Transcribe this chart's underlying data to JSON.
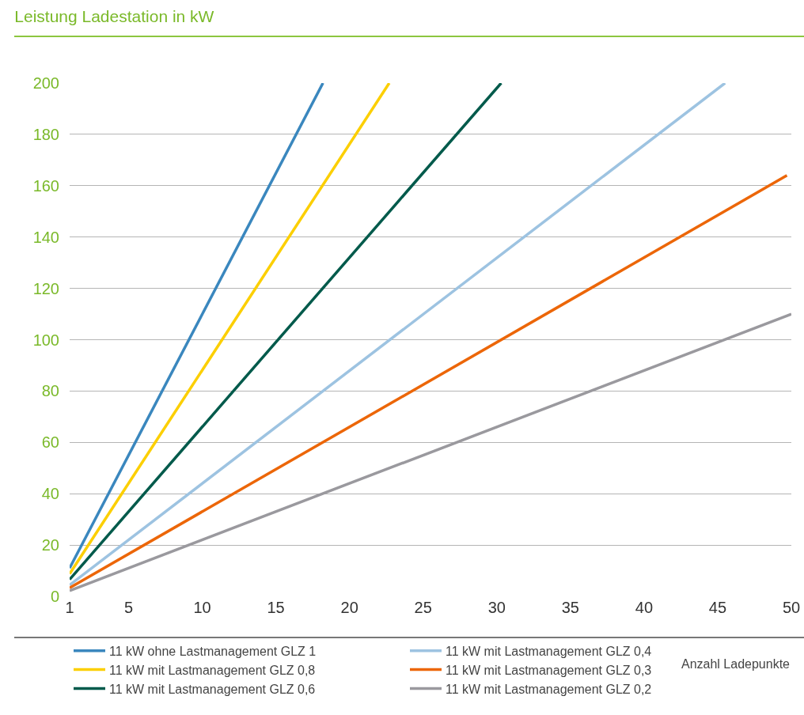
{
  "chart_data": {
    "type": "line",
    "title": "Leistung Ladestation in kW",
    "xlabel": "Anzahl Ladepunkte",
    "xlim": [
      1,
      50
    ],
    "xticks": [
      1,
      5,
      10,
      15,
      20,
      25,
      30,
      35,
      40,
      45,
      50
    ],
    "ylim": [
      0,
      200
    ],
    "yticks": [
      0,
      20,
      40,
      60,
      80,
      100,
      120,
      140,
      160,
      180,
      200
    ],
    "grid": "y",
    "legend": "bottom",
    "marker": "none",
    "line_style": "solid",
    "series": [
      {
        "name": "11 kW ohne Lastmanagement GLZ 1",
        "color": "#3a87be",
        "x": [
          1,
          18.2
        ],
        "values": [
          11,
          200
        ]
      },
      {
        "name": "11 kW mit Lastmanagement GLZ 0,8",
        "color": "#fccf00",
        "x": [
          1,
          22.7
        ],
        "values": [
          8.8,
          200
        ]
      },
      {
        "name": "11 kW mit Lastmanagement GLZ 0,6",
        "color": "#005a4b",
        "x": [
          1,
          30.3
        ],
        "values": [
          6.6,
          200
        ]
      },
      {
        "name": "11 kW mit Lastmanagement GLZ 0,4",
        "color": "#9dc3e1",
        "x": [
          1,
          45.5
        ],
        "values": [
          4.4,
          200
        ]
      },
      {
        "name": "11 kW mit Lastmanagement GLZ 0,3",
        "color": "#ec6608",
        "x": [
          1,
          49.7
        ],
        "values": [
          3.3,
          164
        ]
      },
      {
        "name": "11 kW mit Lastmanagement GLZ 0,2",
        "color": "#9a999e",
        "x": [
          1,
          50
        ],
        "values": [
          2.2,
          110
        ]
      }
    ]
  }
}
